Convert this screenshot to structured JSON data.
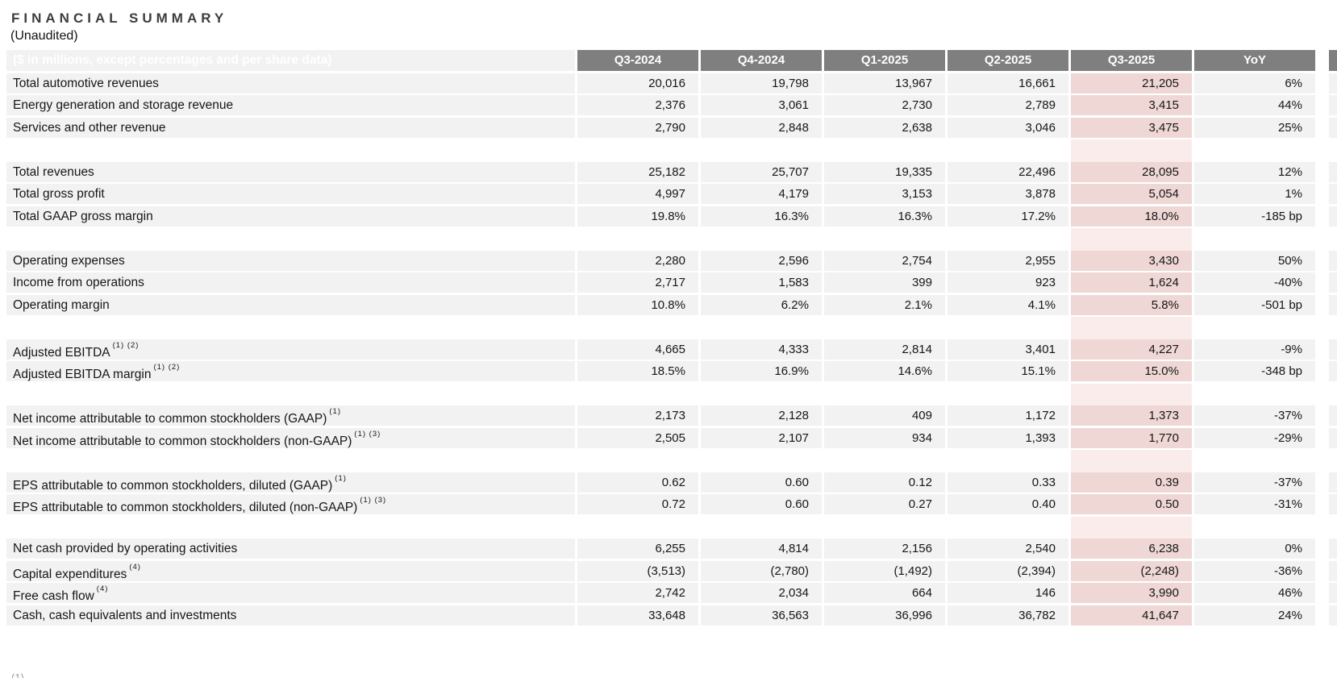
{
  "page": {
    "title": "FINANCIAL SUMMARY",
    "subtitle": "(Unaudited)",
    "footnote_fragment": "(1)"
  },
  "table": {
    "header_label": "($ in millions, except percentages and per share data)",
    "columns": [
      "Q3-2024",
      "Q4-2024",
      "Q1-2025",
      "Q2-2025",
      "Q3-2025",
      "YoY"
    ],
    "highlight_column": "Q3-2025",
    "colors": {
      "header_bg": "#7f7f7f",
      "header_text": "#ffffff",
      "row_bg": "#f2f2f2",
      "highlight_cell_bg": "#eed7d5",
      "highlight_spacer_bg": "#f9eceb"
    },
    "sections": [
      {
        "rows": [
          {
            "label": "Total automotive revenues",
            "sup": "",
            "values": [
              "20,016",
              "19,798",
              "13,967",
              "16,661",
              "21,205",
              "6%"
            ]
          },
          {
            "label": "Energy generation and storage revenue",
            "sup": "",
            "values": [
              "2,376",
              "3,061",
              "2,730",
              "2,789",
              "3,415",
              "44%"
            ]
          },
          {
            "label": "Services and other revenue",
            "sup": "",
            "values": [
              "2,790",
              "2,848",
              "2,638",
              "3,046",
              "3,475",
              "25%"
            ]
          }
        ]
      },
      {
        "rows": [
          {
            "label": "Total revenues",
            "sup": "",
            "values": [
              "25,182",
              "25,707",
              "19,335",
              "22,496",
              "28,095",
              "12%"
            ]
          },
          {
            "label": "Total gross profit",
            "sup": "",
            "values": [
              "4,997",
              "4,179",
              "3,153",
              "3,878",
              "5,054",
              "1%"
            ]
          },
          {
            "label": "Total GAAP gross margin",
            "sup": "",
            "values": [
              "19.8%",
              "16.3%",
              "16.3%",
              "17.2%",
              "18.0%",
              "-185 bp"
            ]
          }
        ]
      },
      {
        "rows": [
          {
            "label": "Operating expenses",
            "sup": "",
            "values": [
              "2,280",
              "2,596",
              "2,754",
              "2,955",
              "3,430",
              "50%"
            ]
          },
          {
            "label": "Income from operations",
            "sup": "",
            "values": [
              "2,717",
              "1,583",
              "399",
              "923",
              "1,624",
              "-40%"
            ]
          },
          {
            "label": "Operating margin",
            "sup": "",
            "values": [
              "10.8%",
              "6.2%",
              "2.1%",
              "4.1%",
              "5.8%",
              "-501 bp"
            ]
          }
        ]
      },
      {
        "rows": [
          {
            "label": "Adjusted EBITDA",
            "sup": "(1) (2)",
            "values": [
              "4,665",
              "4,333",
              "2,814",
              "3,401",
              "4,227",
              "-9%"
            ]
          },
          {
            "label": "Adjusted EBITDA margin",
            "sup": "(1) (2)",
            "values": [
              "18.5%",
              "16.9%",
              "14.6%",
              "15.1%",
              "15.0%",
              "-348 bp"
            ]
          }
        ]
      },
      {
        "rows": [
          {
            "label": "Net income attributable to common stockholders (GAAP)",
            "sup": "(1)",
            "values": [
              "2,173",
              "2,128",
              "409",
              "1,172",
              "1,373",
              "-37%"
            ]
          },
          {
            "label": "Net income attributable to common stockholders (non-GAAP)",
            "sup": "(1) (3)",
            "values": [
              "2,505",
              "2,107",
              "934",
              "1,393",
              "1,770",
              "-29%"
            ]
          }
        ]
      },
      {
        "rows": [
          {
            "label": "EPS attributable to common stockholders, diluted (GAAP)",
            "sup": "(1)",
            "values": [
              "0.62",
              "0.60",
              "0.12",
              "0.33",
              "0.39",
              "-37%"
            ]
          },
          {
            "label": "EPS attributable to common stockholders, diluted (non-GAAP)",
            "sup": "(1) (3)",
            "values": [
              "0.72",
              "0.60",
              "0.27",
              "0.40",
              "0.50",
              "-31%"
            ]
          }
        ]
      },
      {
        "rows": [
          {
            "label": "Net cash provided by operating activities",
            "sup": "",
            "values": [
              "6,255",
              "4,814",
              "2,156",
              "2,540",
              "6,238",
              "0%"
            ]
          },
          {
            "label": "Capital expenditures",
            "sup": "(4)",
            "values": [
              "(3,513)",
              "(2,780)",
              "(1,492)",
              "(2,394)",
              "(2,248)",
              "-36%"
            ]
          },
          {
            "label": "Free cash flow",
            "sup": "(4)",
            "values": [
              "2,742",
              "2,034",
              "664",
              "146",
              "3,990",
              "46%"
            ]
          },
          {
            "label": "Cash, cash equivalents and investments",
            "sup": "",
            "values": [
              "33,648",
              "36,563",
              "36,996",
              "36,782",
              "41,647",
              "24%"
            ]
          }
        ]
      }
    ]
  }
}
